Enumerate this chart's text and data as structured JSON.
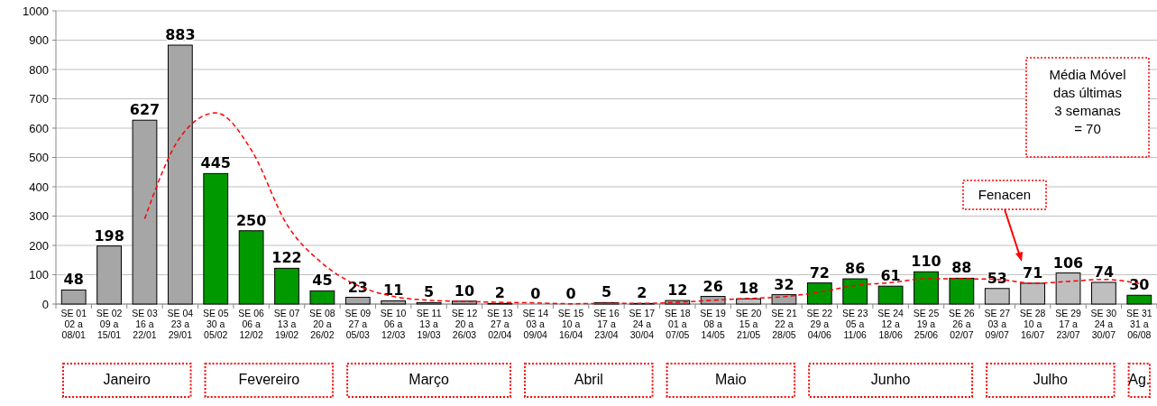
{
  "chart_data": {
    "type": "bar",
    "categories": [
      "SE 01\n02 a\n08/01",
      "SE 02\n09 a\n15/01",
      "SE 03\n16 a\n22/01",
      "SE 04\n23 a\n29/01",
      "SE 05\n30 a\n05/02",
      "SE 06\n06 a\n12/02",
      "SE 07\n13 a\n19/02",
      "SE 08\n20 a\n26/02",
      "SE 09\n27 a\n05/03",
      "SE 10\n06 a\n12/03",
      "SE 11\n13 a\n19/03",
      "SE 12\n20 a\n26/03",
      "SE 13\n27 a\n02/04",
      "SE 14\n03 a\n09/04",
      "SE 15\n10 a\n16/04",
      "SE 16\n17 a\n23/04",
      "SE 17\n24 a\n30/04",
      "SE 18\n01 a\n07/05",
      "SE 19\n08 a\n14/05",
      "SE 20\n15 a\n21/05",
      "SE 21\n22 a\n28/05",
      "SE 22\n29 a\n04/06",
      "SE 23\n05 a\n11/06",
      "SE 24\n12 a\n18/06",
      "SE 25\n19 a\n25/06",
      "SE 26\n26 a\n02/07",
      "SE 27\n03 a\n09/07",
      "SE 28\n10 a\n16/07",
      "SE 29\n17 a\n23/07",
      "SE 30\n24 a\n30/07",
      "SE 31\n31 a\n06/08"
    ],
    "series": [
      {
        "value_labels": [
          "48",
          "198",
          "627",
          "883",
          "445",
          "250",
          "122",
          "45",
          "23",
          "11",
          "5",
          "10",
          "2",
          "0",
          "0",
          "5",
          "2",
          "12",
          "26",
          "18",
          "32",
          "72",
          "86",
          "61",
          "110",
          "88",
          "53",
          "71",
          "106",
          "74",
          "30"
        ],
        "values": [
          48,
          198,
          627,
          883,
          445,
          250,
          122,
          45,
          23,
          11,
          5,
          10,
          2,
          0,
          0,
          5,
          2,
          12,
          26,
          18,
          32,
          72,
          86,
          61,
          110,
          88,
          53,
          71,
          106,
          74,
          30
        ],
        "colors": [
          "#a6a6a6",
          "#a6a6a6",
          "#a6a6a6",
          "#a6a6a6",
          "#009900",
          "#009900",
          "#009900",
          "#009900",
          "#a6a6a6",
          "#a6a6a6",
          "#a6a6a6",
          "#a6a6a6",
          "#a6a6a6",
          "#a6a6a6",
          "#a6a6a6",
          "#a6a6a6",
          "#a6a6a6",
          "#a6a6a6",
          "#a6a6a6",
          "#bfbfbf",
          "#a6a6a6",
          "#009900",
          "#009900",
          "#009900",
          "#009900",
          "#009900",
          "#bfbfbf",
          "#bfbfbf",
          "#bfbfbf",
          "#bfbfbf",
          "#009900"
        ]
      },
      {
        "type": "line",
        "color": "#ff0000",
        "line_style": "dashed",
        "values": [
          null,
          null,
          291,
          569,
          652,
          526,
          272,
          139,
          63,
          26,
          13,
          9,
          6,
          4,
          1,
          2,
          2,
          6,
          13,
          19,
          25,
          41,
          63,
          73,
          86,
          86,
          84,
          71,
          77,
          84,
          70
        ]
      }
    ],
    "ylim": [
      0,
      1000
    ],
    "yticks": [
      0,
      100,
      200,
      300,
      400,
      500,
      600,
      700,
      800,
      900,
      1000
    ],
    "grid": "y",
    "annotations": [
      "Média Móvel\ndas últimas\n3 semanas\n= 70",
      "Fenacen",
      "Janeiro",
      "Fevereiro",
      "Março",
      "Abril",
      "Maio",
      "Junho",
      "Julho",
      "Ag."
    ]
  }
}
